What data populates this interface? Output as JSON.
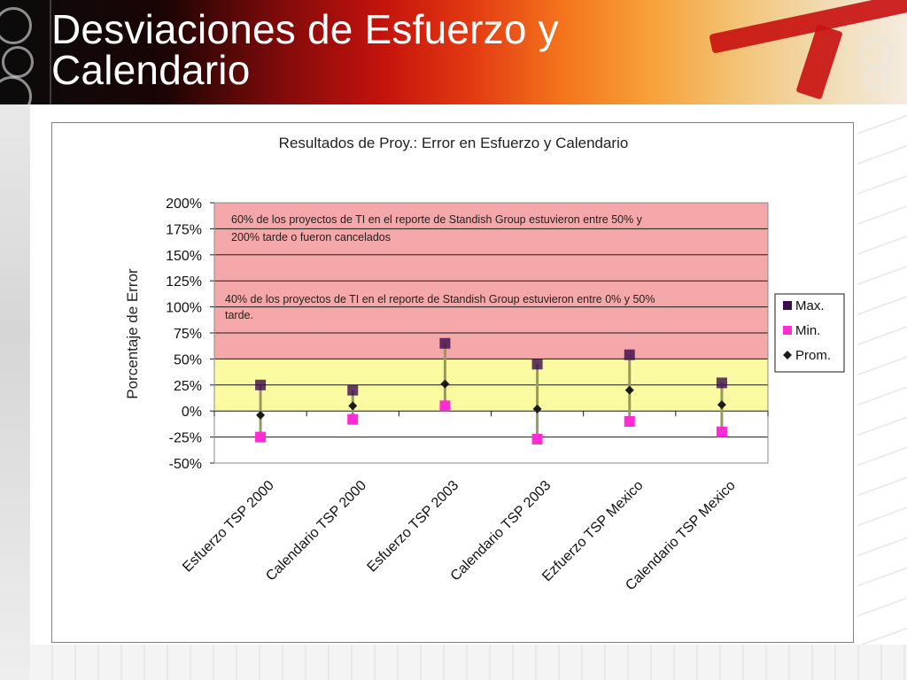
{
  "slide": {
    "title_line1": "Desviaciones de Esfuerzo y",
    "title_line2": "Calendario"
  },
  "colors": {
    "red_zone": "#f4a8aa",
    "yellow_zone": "#fafaa0",
    "max_marker": "#3b0a4f",
    "min_marker": "#ff2bd4",
    "prom_marker": "#1a1a1a",
    "range_line": "#9a9a60"
  },
  "chart_data": {
    "type": "scatter",
    "title": "Resultados de Proy.: Error en Esfuerzo y Calendario",
    "ylabel": "Porcentaje de Error",
    "xlabel": "",
    "ylim": [
      -50,
      200
    ],
    "yticks": [
      "200%",
      "175%",
      "150%",
      "125%",
      "100%",
      "75%",
      "50%",
      "25%",
      "0%",
      "-25%",
      "-50%"
    ],
    "ytick_values": [
      200,
      175,
      150,
      125,
      100,
      75,
      50,
      25,
      0,
      -25,
      -50
    ],
    "categories": [
      "Esfuerzo TSP 2000",
      "Calendario TSP 2000",
      "Esfuerzo TSP 2003",
      "Calendario TSP 2003",
      "Ezfuerzo TSP Mexico",
      "Calendario TSP Mexico"
    ],
    "series": [
      {
        "name": "Max.",
        "values": [
          25,
          20,
          65,
          45,
          54,
          27
        ]
      },
      {
        "name": "Min.",
        "values": [
          -25,
          -8,
          5,
          -27,
          -10,
          -20
        ]
      },
      {
        "name": "Prom.",
        "values": [
          -4,
          5,
          26,
          2,
          20,
          6
        ]
      }
    ],
    "bands": [
      {
        "from": 50,
        "to": 200,
        "color": "red"
      },
      {
        "from": 0,
        "to": 50,
        "color": "yellow"
      }
    ],
    "annotations": [
      {
        "line1": "60% de los proyectos de TI en el reporte de Standish Group estuvieron entre 50% y",
        "line2": "200% tarde o fueron cancelados"
      },
      {
        "line1": "40% de los proyectos de TI en el reporte de Standish Group estuvieron entre 0% y 50%",
        "line2": "tarde."
      }
    ],
    "legend_position": "right",
    "grid": true
  }
}
